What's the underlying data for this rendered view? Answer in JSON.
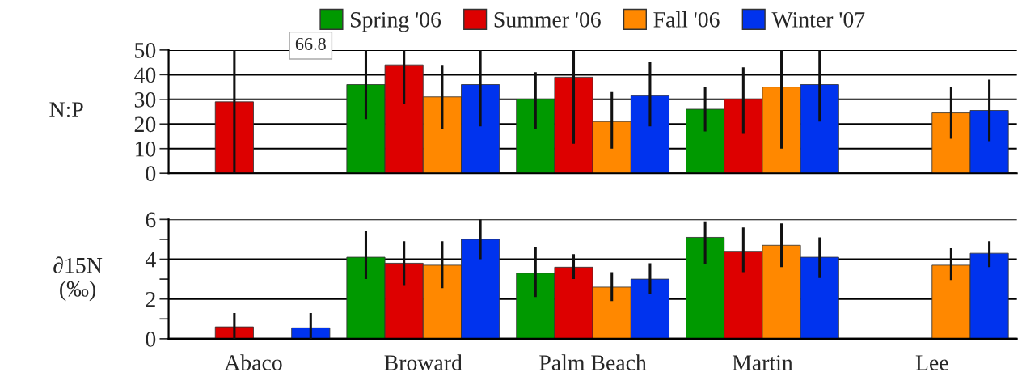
{
  "chart_data": [
    {
      "type": "bar",
      "ylabel": "N:P",
      "ylim": [
        0,
        50
      ],
      "yticks": [
        0,
        10,
        20,
        30,
        40,
        50
      ],
      "grid": "y",
      "legend": "top",
      "tick_labels": "y",
      "series": [
        {
          "name": "Spring '06",
          "color": "#009900",
          "values": [
            null,
            36,
            30,
            26,
            null
          ],
          "errors": [
            null,
            [
              22,
              50
            ],
            [
              18,
              41
            ],
            [
              17,
              35
            ],
            null
          ]
        },
        {
          "name": "Summer '06",
          "color": "#dd0000",
          "values": [
            29,
            44,
            39,
            30,
            null
          ],
          "errors": [
            [
              0,
              50
            ],
            [
              28,
              50
            ],
            [
              12,
              50
            ],
            [
              16,
              43
            ],
            null
          ]
        },
        {
          "name": "Fall '06",
          "color": "#ff8800",
          "values": [
            null,
            31,
            21,
            35,
            24.5
          ],
          "errors": [
            null,
            [
              18,
              44
            ],
            [
              10,
              33
            ],
            [
              10,
              50
            ],
            [
              14,
              35
            ]
          ]
        },
        {
          "name": "Winter '07",
          "color": "#0033ee",
          "values": [
            null,
            36,
            31.5,
            36,
            25.5
          ],
          "errors": [
            null,
            [
              19,
              50
            ],
            [
              19,
              45
            ],
            [
              21,
              50
            ],
            [
              13,
              38
            ]
          ],
          "value_labels": [
            "66.8",
            null,
            null,
            null,
            null
          ]
        }
      ]
    },
    {
      "type": "bar",
      "ylabel": "∂15N\n(‰)",
      "categories": [
        "Abaco",
        "Broward",
        "Palm Beach",
        "Martin",
        "Lee"
      ],
      "ylim": [
        0,
        6
      ],
      "yticks": [
        0,
        {
          "value": 1,
          "label": null
        },
        2,
        {
          "value": 3,
          "label": null
        },
        4,
        {
          "value": 5,
          "label": null
        },
        6
      ],
      "grid": "y",
      "series": [
        {
          "color": "#009900",
          "values": [
            null,
            4.1,
            3.3,
            5.1,
            null
          ],
          "errors": [
            null,
            [
              3.0,
              5.4
            ],
            [
              2.1,
              4.6
            ],
            [
              3.75,
              5.9
            ],
            null
          ]
        },
        {
          "color": "#dd0000",
          "values": [
            0.6,
            3.8,
            3.6,
            4.4,
            null
          ],
          "errors": [
            [
              0,
              1.3
            ],
            [
              2.7,
              4.9
            ],
            [
              3.0,
              4.25
            ],
            [
              3.35,
              5.6
            ],
            null
          ]
        },
        {
          "color": "#ff8800",
          "values": [
            null,
            3.7,
            2.6,
            4.7,
            3.7
          ],
          "errors": [
            null,
            [
              2.55,
              4.9
            ],
            [
              1.9,
              3.35
            ],
            [
              3.6,
              5.8
            ],
            [
              2.95,
              4.55
            ]
          ]
        },
        {
          "color": "#0033ee",
          "values": [
            0.55,
            5.0,
            3.0,
            4.1,
            4.3
          ],
          "errors": [
            [
              0,
              1.3
            ],
            [
              4.0,
              6.0
            ],
            [
              2.25,
              3.8
            ],
            [
              3.05,
              5.1
            ],
            [
              3.6,
              4.9
            ]
          ]
        }
      ]
    }
  ]
}
